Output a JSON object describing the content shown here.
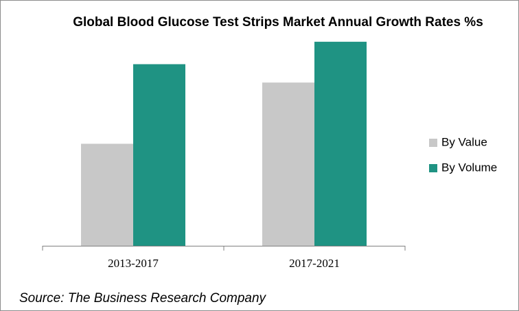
{
  "chart_data": {
    "type": "bar",
    "title": "Global Blood Glucose Test Strips Market Annual Growth Rates %s",
    "categories": [
      "2013-2017",
      "2017-2021"
    ],
    "series": [
      {
        "name": "By Value",
        "color": "#c8c8c8",
        "values": [
          5.0,
          8.0
        ]
      },
      {
        "name": "By Volume",
        "color": "#1f9383",
        "values": [
          8.9,
          10.0
        ]
      }
    ],
    "ylim": [
      0,
      10.7
    ],
    "legend": "right",
    "source": "Source: The Business Research Company"
  }
}
